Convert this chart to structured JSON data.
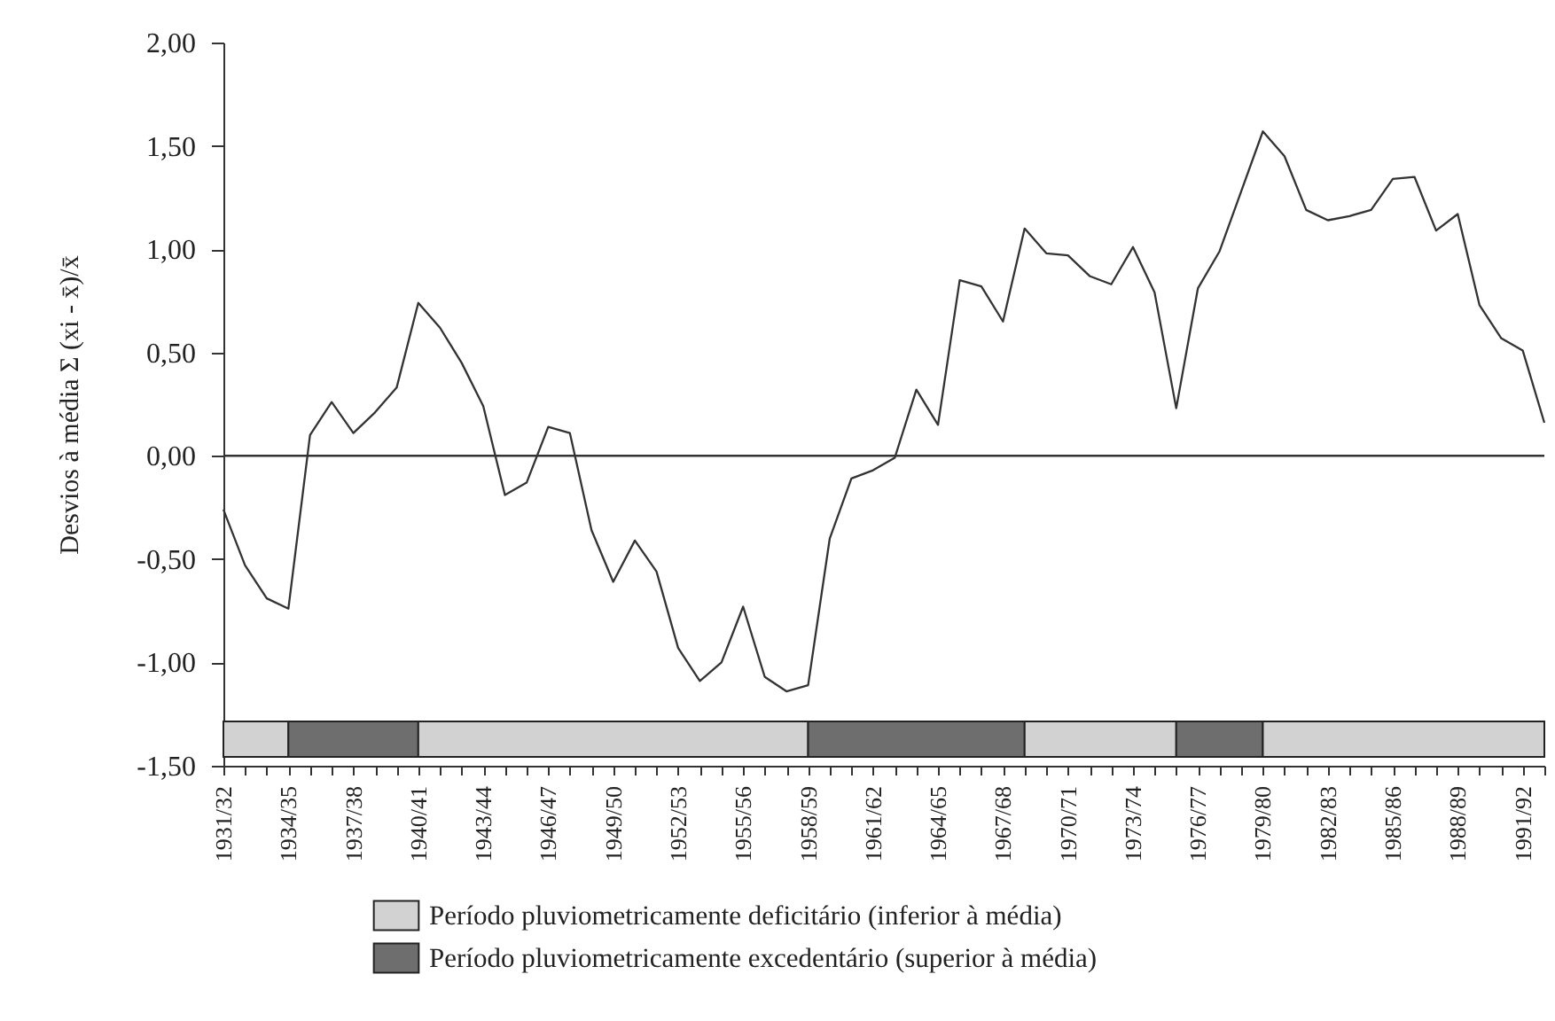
{
  "chart_data": {
    "type": "line",
    "ylabel": "Desvios à média Σ (xi - x̄)/x̄",
    "x": [
      "1931",
      "1932",
      "1933",
      "1934",
      "1935",
      "1936",
      "1937",
      "1938",
      "1939",
      "1940",
      "1941",
      "1942",
      "1943",
      "1944",
      "1945",
      "1946",
      "1947",
      "1948",
      "1949",
      "1950",
      "1951",
      "1952",
      "1953",
      "1954",
      "1955",
      "1956",
      "1957",
      "1958",
      "1959",
      "1960",
      "1961",
      "1962",
      "1963",
      "1964",
      "1965",
      "1966",
      "1967",
      "1968",
      "1969",
      "1970",
      "1971",
      "1972",
      "1973",
      "1974",
      "1975",
      "1976",
      "1977",
      "1978",
      "1979",
      "1980",
      "1981",
      "1982",
      "1983",
      "1984",
      "1985",
      "1986",
      "1987",
      "1988",
      "1989",
      "1990",
      "1991",
      "1992"
    ],
    "series": [
      {
        "color": "#333333",
        "values": [
          -0.26,
          -0.53,
          -0.69,
          -0.74,
          0.1,
          0.26,
          0.11,
          0.21,
          0.33,
          0.74,
          0.62,
          0.45,
          0.24,
          -0.19,
          -0.13,
          0.14,
          0.11,
          -0.36,
          -0.61,
          -0.41,
          -0.56,
          -0.93,
          -1.09,
          -1.0,
          -0.73,
          -1.07,
          -1.14,
          -1.11,
          -0.4,
          -0.11,
          -0.07,
          -0.01,
          0.32,
          0.15,
          0.85,
          0.82,
          0.65,
          1.1,
          0.98,
          0.97,
          0.87,
          0.83,
          1.01,
          0.79,
          0.23,
          0.81,
          0.99,
          1.28,
          1.57,
          1.45,
          1.19,
          1.14,
          1.16,
          1.19,
          1.34,
          1.35,
          1.09,
          1.17,
          0.73,
          0.57,
          0.51,
          0.16
        ]
      }
    ],
    "xlim": [
      "1931",
      "1992"
    ],
    "xticks": [
      {
        "value": "1931",
        "label": "1931/32"
      },
      {
        "value": "1932",
        "label": null
      },
      {
        "value": "1933",
        "label": null
      },
      {
        "value": "1934",
        "label": "1934/35"
      },
      {
        "value": "1935",
        "label": null
      },
      {
        "value": "1936",
        "label": null
      },
      {
        "value": "1937",
        "label": "1937/38"
      },
      {
        "value": "1938",
        "label": null
      },
      {
        "value": "1939",
        "label": null
      },
      {
        "value": "1940",
        "label": "1940/41"
      },
      {
        "value": "1941",
        "label": null
      },
      {
        "value": "1942",
        "label": null
      },
      {
        "value": "1943",
        "label": "1943/44"
      },
      {
        "value": "1944",
        "label": null
      },
      {
        "value": "1945",
        "label": null
      },
      {
        "value": "1946",
        "label": "1946/47"
      },
      {
        "value": "1947",
        "label": null
      },
      {
        "value": "1948",
        "label": null
      },
      {
        "value": "1949",
        "label": "1949/50"
      },
      {
        "value": "1950",
        "label": null
      },
      {
        "value": "1951",
        "label": null
      },
      {
        "value": "1952",
        "label": "1952/53"
      },
      {
        "value": "1953",
        "label": null
      },
      {
        "value": "1954",
        "label": null
      },
      {
        "value": "1955",
        "label": "1955/56"
      },
      {
        "value": "1956",
        "label": null
      },
      {
        "value": "1957",
        "label": null
      },
      {
        "value": "1958",
        "label": "1958/59"
      },
      {
        "value": "1959",
        "label": null
      },
      {
        "value": "1960",
        "label": null
      },
      {
        "value": "1961",
        "label": "1961/62"
      },
      {
        "value": "1962",
        "label": null
      },
      {
        "value": "1963",
        "label": null
      },
      {
        "value": "1964",
        "label": "1964/65"
      },
      {
        "value": "1965",
        "label": null
      },
      {
        "value": "1966",
        "label": null
      },
      {
        "value": "1967",
        "label": "1967/68"
      },
      {
        "value": "1968",
        "label": null
      },
      {
        "value": "1969",
        "label": null
      },
      {
        "value": "1970",
        "label": "1970/71"
      },
      {
        "value": "1971",
        "label": null
      },
      {
        "value": "1972",
        "label": null
      },
      {
        "value": "1973",
        "label": "1973/74"
      },
      {
        "value": "1974",
        "label": null
      },
      {
        "value": "1975",
        "label": null
      },
      {
        "value": "1976",
        "label": "1976/77"
      },
      {
        "value": "1977",
        "label": null
      },
      {
        "value": "1978",
        "label": null
      },
      {
        "value": "1979",
        "label": "1979/80"
      },
      {
        "value": "1980",
        "label": null
      },
      {
        "value": "1981",
        "label": null
      },
      {
        "value": "1982",
        "label": "1982/83"
      },
      {
        "value": "1983",
        "label": null
      },
      {
        "value": "1984",
        "label": null
      },
      {
        "value": "1985",
        "label": "1985/86"
      },
      {
        "value": "1986",
        "label": null
      },
      {
        "value": "1987",
        "label": null
      },
      {
        "value": "1988",
        "label": "1988/89"
      },
      {
        "value": "1989",
        "label": null
      },
      {
        "value": "1990",
        "label": null
      },
      {
        "value": "1991",
        "label": "1991/92"
      },
      {
        "value": "1992",
        "label": null
      }
    ],
    "ylim": [
      -1.5,
      2
    ],
    "yticks": [
      {
        "value": -1.5,
        "label": "-1,50"
      },
      {
        "value": -1,
        "label": "-1,00"
      },
      {
        "value": -0.5,
        "label": "-0,50"
      },
      {
        "value": 0,
        "label": "0,00"
      },
      {
        "value": 0.5,
        "label": "0,50"
      },
      {
        "value": 1,
        "label": "1,00"
      },
      {
        "value": 1.5,
        "label": "1,50"
      },
      {
        "value": 2,
        "label": "2,00"
      }
    ],
    "ref_lines": [
      {
        "axis": "y",
        "value": 0,
        "color": "#333333"
      }
    ],
    "bands": [
      {
        "axis": "x",
        "from": "1931",
        "to": "1934",
        "label": "Período pluviometricamente deficitário (inferior à média)",
        "color": "#d2d2d2"
      },
      {
        "axis": "x",
        "from": "1934",
        "to": "1940",
        "label": "Período pluviometricamente excedentário (superior à média)",
        "color": "#6e6e6e"
      },
      {
        "axis": "x",
        "from": "1940",
        "to": "1958",
        "color": "#d2d2d2"
      },
      {
        "axis": "x",
        "from": "1958",
        "to": "1968",
        "color": "#6e6e6e"
      },
      {
        "axis": "x",
        "from": "1968",
        "to": "1975",
        "color": "#d2d2d2"
      },
      {
        "axis": "x",
        "from": "1975",
        "to": "1979",
        "color": "#6e6e6e"
      },
      {
        "axis": "x",
        "from": "1979",
        "to": "1992",
        "color": "#d2d2d2"
      }
    ],
    "legend": "bottom"
  }
}
